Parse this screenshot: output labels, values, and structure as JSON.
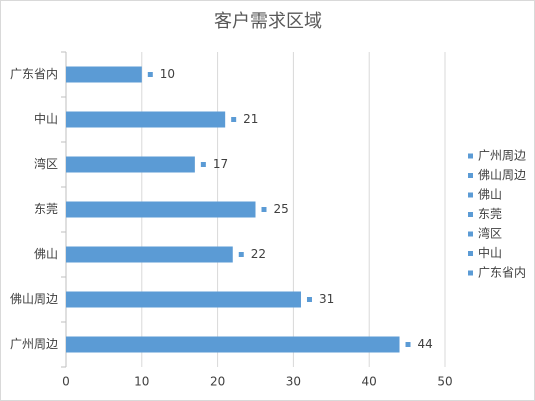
{
  "chart_data": {
    "type": "barh",
    "title": "客户需求区域",
    "categories": [
      "广东省内",
      "中山",
      "湾区",
      "东莞",
      "佛山",
      "佛山周边",
      "广州周边"
    ],
    "values": [
      10,
      21,
      17,
      25,
      22,
      31,
      44
    ],
    "color": "#5b9bd5",
    "xlim": [
      0,
      50
    ],
    "xticks": [
      0,
      10,
      20,
      30,
      40,
      50
    ],
    "grid": true,
    "legend": "right"
  }
}
